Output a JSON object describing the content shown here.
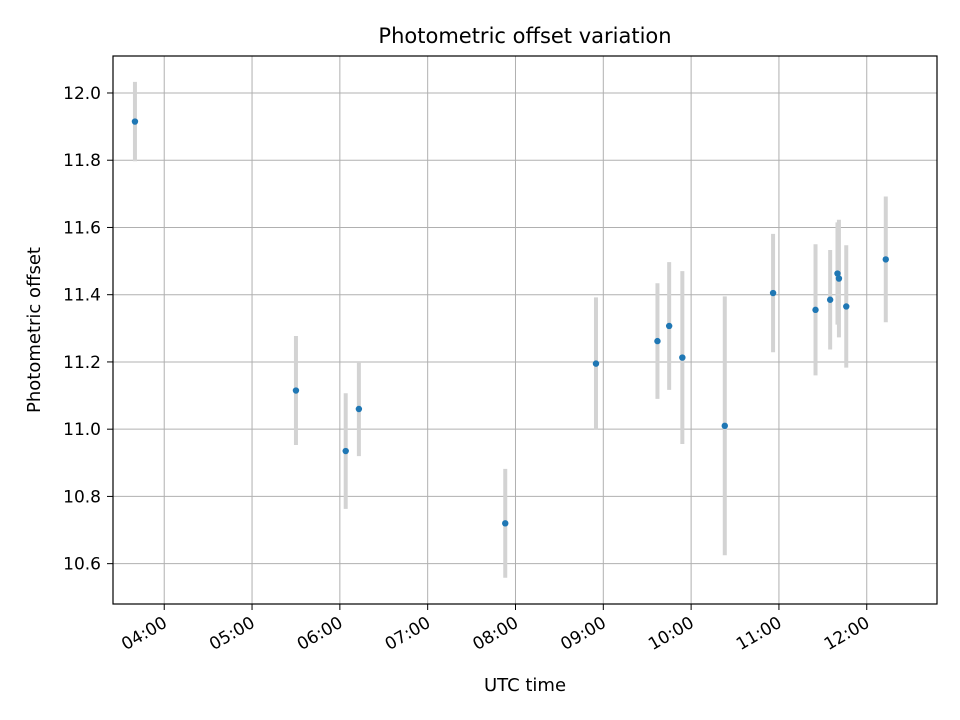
{
  "chart_data": {
    "type": "scatter",
    "title": "Photometric offset variation",
    "xlabel": "UTC time",
    "ylabel": "Photometric offset",
    "x_ticks": [
      "04:00",
      "05:00",
      "06:00",
      "07:00",
      "08:00",
      "09:00",
      "10:00",
      "11:00",
      "12:00"
    ],
    "y_ticks": [
      "10.6",
      "10.8",
      "11.0",
      "11.2",
      "11.4",
      "11.6",
      "11.8",
      "12.0"
    ],
    "xlim": [
      "03:25",
      "12:48"
    ],
    "ylim": [
      10.48,
      12.11
    ],
    "grid": true,
    "point_color": "#1f77b4",
    "errorbar_color": "#d3d3d3",
    "points": [
      {
        "x": "03:40",
        "y": 11.915,
        "err": 0.118
      },
      {
        "x": "05:30",
        "y": 11.115,
        "err": 0.162
      },
      {
        "x": "06:04",
        "y": 10.935,
        "err": 0.172
      },
      {
        "x": "06:13",
        "y": 11.06,
        "err": 0.14
      },
      {
        "x": "07:53",
        "y": 10.72,
        "err": 0.162
      },
      {
        "x": "08:55",
        "y": 11.195,
        "err": 0.197
      },
      {
        "x": "09:37",
        "y": 11.262,
        "err": 0.172
      },
      {
        "x": "09:45",
        "y": 11.307,
        "err": 0.19
      },
      {
        "x": "09:54",
        "y": 11.213,
        "err": 0.257
      },
      {
        "x": "10:23",
        "y": 11.01,
        "err": 0.385
      },
      {
        "x": "10:56",
        "y": 11.405,
        "err": 0.176
      },
      {
        "x": "11:25",
        "y": 11.355,
        "err": 0.195
      },
      {
        "x": "11:35",
        "y": 11.385,
        "err": 0.148
      },
      {
        "x": "11:40",
        "y": 11.463,
        "err": 0.152
      },
      {
        "x": "11:41",
        "y": 11.448,
        "err": 0.175
      },
      {
        "x": "11:46",
        "y": 11.365,
        "err": 0.182
      },
      {
        "x": "12:13",
        "y": 11.505,
        "err": 0.187
      }
    ]
  }
}
